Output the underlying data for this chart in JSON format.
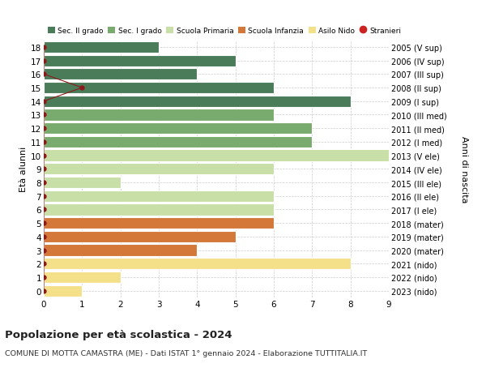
{
  "ages": [
    18,
    17,
    16,
    15,
    14,
    13,
    12,
    11,
    10,
    9,
    8,
    7,
    6,
    5,
    4,
    3,
    2,
    1,
    0
  ],
  "right_labels": [
    "2005 (V sup)",
    "2006 (IV sup)",
    "2007 (III sup)",
    "2008 (II sup)",
    "2009 (I sup)",
    "2010 (III med)",
    "2011 (II med)",
    "2012 (I med)",
    "2013 (V ele)",
    "2014 (IV ele)",
    "2015 (III ele)",
    "2016 (II ele)",
    "2017 (I ele)",
    "2018 (mater)",
    "2019 (mater)",
    "2020 (mater)",
    "2021 (nido)",
    "2022 (nido)",
    "2023 (nido)"
  ],
  "bars": [
    {
      "age": 18,
      "value": 3,
      "color": "#4a7c59"
    },
    {
      "age": 17,
      "value": 5,
      "color": "#4a7c59"
    },
    {
      "age": 16,
      "value": 4,
      "color": "#4a7c59"
    },
    {
      "age": 15,
      "value": 6,
      "color": "#4a7c59"
    },
    {
      "age": 14,
      "value": 8,
      "color": "#4a7c59"
    },
    {
      "age": 13,
      "value": 6,
      "color": "#7aab6e"
    },
    {
      "age": 12,
      "value": 7,
      "color": "#7aab6e"
    },
    {
      "age": 11,
      "value": 7,
      "color": "#7aab6e"
    },
    {
      "age": 10,
      "value": 9,
      "color": "#c8dfa8"
    },
    {
      "age": 9,
      "value": 6,
      "color": "#c8dfa8"
    },
    {
      "age": 8,
      "value": 2,
      "color": "#c8dfa8"
    },
    {
      "age": 7,
      "value": 6,
      "color": "#c8dfa8"
    },
    {
      "age": 6,
      "value": 6,
      "color": "#c8dfa8"
    },
    {
      "age": 5,
      "value": 6,
      "color": "#d4783a"
    },
    {
      "age": 4,
      "value": 5,
      "color": "#d4783a"
    },
    {
      "age": 3,
      "value": 4,
      "color": "#d4783a"
    },
    {
      "age": 2,
      "value": 8,
      "color": "#f5e08a"
    },
    {
      "age": 1,
      "value": 2,
      "color": "#f5e08a"
    },
    {
      "age": 0,
      "value": 1,
      "color": "#f5e08a"
    }
  ],
  "stranieri": [
    {
      "age": 18,
      "x": 0
    },
    {
      "age": 17,
      "x": 0
    },
    {
      "age": 16,
      "x": 0
    },
    {
      "age": 15,
      "x": 1
    },
    {
      "age": 14,
      "x": 0
    },
    {
      "age": 13,
      "x": 0
    },
    {
      "age": 12,
      "x": 0
    },
    {
      "age": 11,
      "x": 0
    },
    {
      "age": 10,
      "x": 0
    },
    {
      "age": 9,
      "x": 0
    },
    {
      "age": 8,
      "x": 0
    },
    {
      "age": 7,
      "x": 0
    },
    {
      "age": 6,
      "x": 0
    },
    {
      "age": 5,
      "x": 0
    },
    {
      "age": 4,
      "x": 0
    },
    {
      "age": 3,
      "x": 0
    },
    {
      "age": 2,
      "x": 0
    },
    {
      "age": 1,
      "x": 0
    },
    {
      "age": 0,
      "x": 0
    }
  ],
  "stranieri_color": "#8b1a1a",
  "legend_categories": [
    "Sec. II grado",
    "Sec. I grado",
    "Scuola Primaria",
    "Scuola Infanzia",
    "Asilo Nido",
    "Stranieri"
  ],
  "legend_colors": [
    "#4a7c59",
    "#7aab6e",
    "#c8dfa8",
    "#d4783a",
    "#f5e08a",
    "#cc2222"
  ],
  "title": "Popolazione per età scolastica - 2024",
  "subtitle": "COMUNE DI MOTTA CAMASTRA (ME) - Dati ISTAT 1° gennaio 2024 - Elaborazione TUTTITALIA.IT",
  "ylabel": "Età alunni",
  "ylabel_right": "Anni di nascita",
  "xlim": [
    0,
    9
  ],
  "ylim": [
    -0.5,
    18.5
  ],
  "bar_height": 0.85,
  "background_color": "#ffffff",
  "grid_color": "#cccccc"
}
